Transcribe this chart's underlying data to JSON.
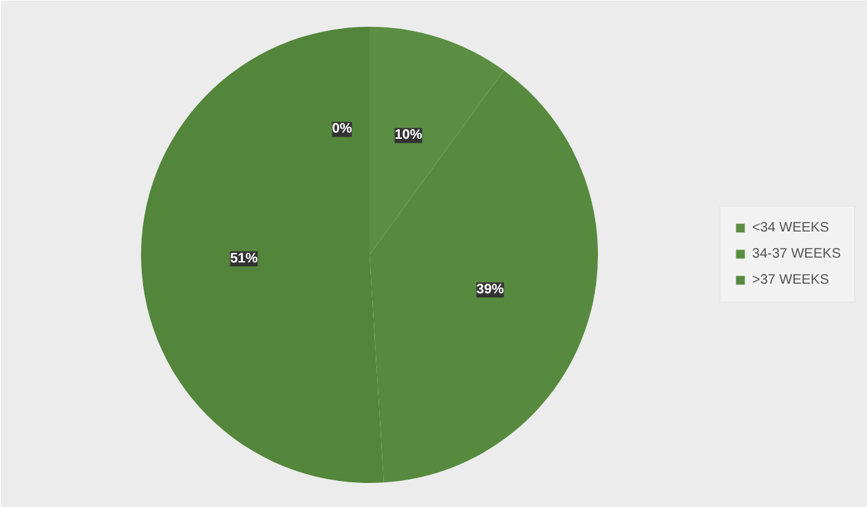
{
  "chart_data": {
    "type": "pie",
    "categories": [
      "<34 WEEKS",
      "34-37 WEEKS",
      ">37 WEEKS",
      null
    ],
    "values": [
      0,
      10,
      39,
      51
    ],
    "colors": [
      "#5b8e42",
      "#5b8e42",
      "#578a3e",
      "#53863a"
    ],
    "value_labels": [
      "0%",
      "10%",
      "39%",
      "51%"
    ],
    "legend": "right"
  }
}
